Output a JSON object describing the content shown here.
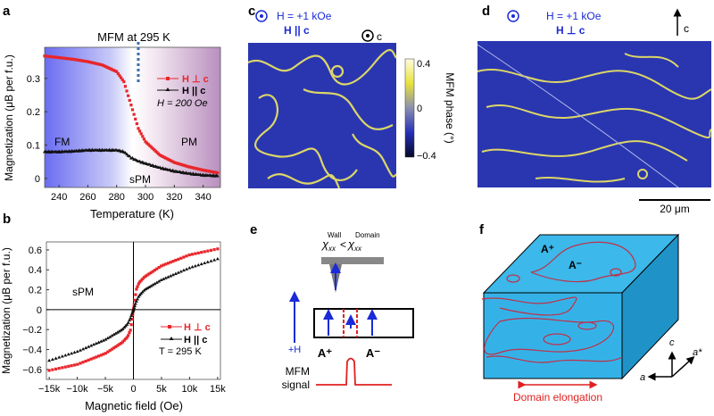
{
  "panels": {
    "a": "a",
    "b": "b",
    "c": "c",
    "d": "d",
    "e": "e",
    "f": "f"
  },
  "chart_data": [
    {
      "type": "scatter",
      "panel": "a",
      "title": "MFM at 295 K",
      "xlabel": "Temperature (K)",
      "ylabel": "Magnetization (μB per f.u.)",
      "xlim": [
        230,
        352
      ],
      "ylim": [
        -0.027,
        0.393
      ],
      "xticks": [
        240,
        260,
        280,
        300,
        320,
        340
      ],
      "yticks": [
        0,
        0.1,
        0.2,
        0.3
      ],
      "ytick_labels": [
        "0",
        "0.1",
        "0.2",
        "0.3"
      ],
      "marker_line_x": 295,
      "region_labels": [
        "FM",
        "sPM",
        "PM"
      ],
      "legend": {
        "placement": "right",
        "entries": [
          "H ⊥ c",
          "H || c"
        ],
        "note": "H = 200 Oe"
      },
      "x": [
        230,
        240,
        250,
        260,
        270,
        280,
        285,
        290,
        295,
        300,
        310,
        320,
        330,
        340,
        350
      ],
      "series": [
        {
          "name": "H ⊥ c",
          "color": "#e8262b",
          "values": [
            0.367,
            0.362,
            0.357,
            0.35,
            0.34,
            0.32,
            0.29,
            0.22,
            0.15,
            0.11,
            0.07,
            0.048,
            0.035,
            0.025,
            0.017
          ]
        },
        {
          "name": "H || c",
          "color": "#111111",
          "values": [
            0.08,
            0.08,
            0.082,
            0.085,
            0.085,
            0.085,
            0.08,
            0.062,
            0.052,
            0.045,
            0.032,
            0.022,
            0.015,
            0.01,
            0.008
          ]
        }
      ]
    },
    {
      "type": "scatter",
      "panel": "b",
      "xlabel": "Magnetic field (Oe)",
      "ylabel": "Magnetization (μB per f.u.)",
      "xlim": [
        -15500,
        15500
      ],
      "ylim": [
        -0.7,
        0.68
      ],
      "xticks": [
        -15000,
        -10000,
        -5000,
        0,
        5000,
        10000,
        15000
      ],
      "xtick_labels": [
        "−15k",
        "−10k",
        "−5k",
        "0",
        "5k",
        "10k",
        "15k"
      ],
      "yticks": [
        -0.6,
        -0.4,
        -0.2,
        0,
        0.2,
        0.4,
        0.6
      ],
      "ytick_labels": [
        "−0.6",
        "−0.4",
        "−0.2",
        "0",
        "0.2",
        "0.4",
        "0.6"
      ],
      "region_label": "sPM",
      "legend": {
        "placement": "bottom-right",
        "entries": [
          "H ⊥ c",
          "H || c"
        ],
        "note": "T = 295 K"
      },
      "x": [
        -15000,
        -10000,
        -5000,
        -2000,
        -1000,
        -500,
        0,
        500,
        1000,
        2000,
        5000,
        10000,
        15000
      ],
      "series": [
        {
          "name": "H ⊥ c",
          "color": "#e8262b",
          "values": [
            -0.61,
            -0.55,
            -0.44,
            -0.33,
            -0.27,
            -0.2,
            0,
            0.2,
            0.27,
            0.33,
            0.44,
            0.55,
            0.61
          ]
        },
        {
          "name": "H || c",
          "color": "#111111",
          "values": [
            -0.51,
            -0.42,
            -0.3,
            -0.2,
            -0.14,
            -0.08,
            0,
            0.08,
            0.14,
            0.2,
            0.3,
            0.42,
            0.51
          ]
        }
      ]
    }
  ],
  "panel_c": {
    "field": "H = +1 kOe",
    "orientation": "H || c",
    "axis": "c",
    "colorbar": {
      "label": "MFM phase (°)",
      "max": "0.4",
      "mid": "0",
      "min": "−0.4"
    }
  },
  "panel_d": {
    "field": "H = +1 kOe",
    "orientation": "H ⊥ c",
    "axis": "c",
    "scale_bar": "20 μm"
  },
  "panel_e": {
    "relation": "χxx(Wall) < χxx(Domain)",
    "chi": "χ",
    "sub": "xx",
    "sup_wall": "Wall",
    "sup_domain": "Domain",
    "lt": "<",
    "field": "+H",
    "domain_plus": "A⁺",
    "domain_minus": "A⁻",
    "signal_label_1": "MFM",
    "signal_label_2": "signal"
  },
  "panel_f": {
    "domain_plus": "A⁺",
    "domain_minus": "A⁻",
    "axis_c": "c",
    "axis_a": "a",
    "axis_astar": "a*",
    "caption": "Domain elongation"
  }
}
